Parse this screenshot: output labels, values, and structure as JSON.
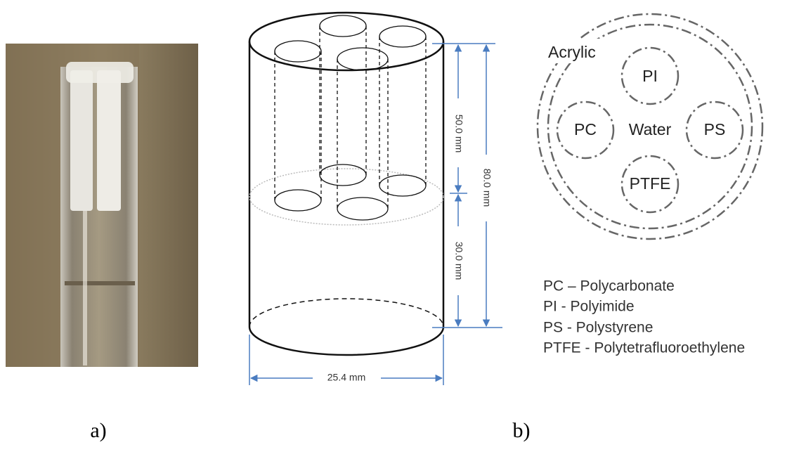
{
  "panel_a": {
    "label": "a)"
  },
  "panel_b": {
    "label": "b)",
    "dimensions": {
      "upper_height": "50.0 mm",
      "total_height": "80.0 mm",
      "lower_height": "30.0 mm",
      "diameter": "25.4 mm"
    },
    "cross_section": {
      "outer": "Acrylic",
      "top": "PI",
      "left": "PC",
      "center": "Water",
      "right": "PS",
      "bottom": "PTFE"
    },
    "legend": [
      "PC – Polycarbonate",
      "PI - Polyimide",
      "PS -  Polystyrene",
      "PTFE - Polytetrafluoroethylene"
    ]
  }
}
